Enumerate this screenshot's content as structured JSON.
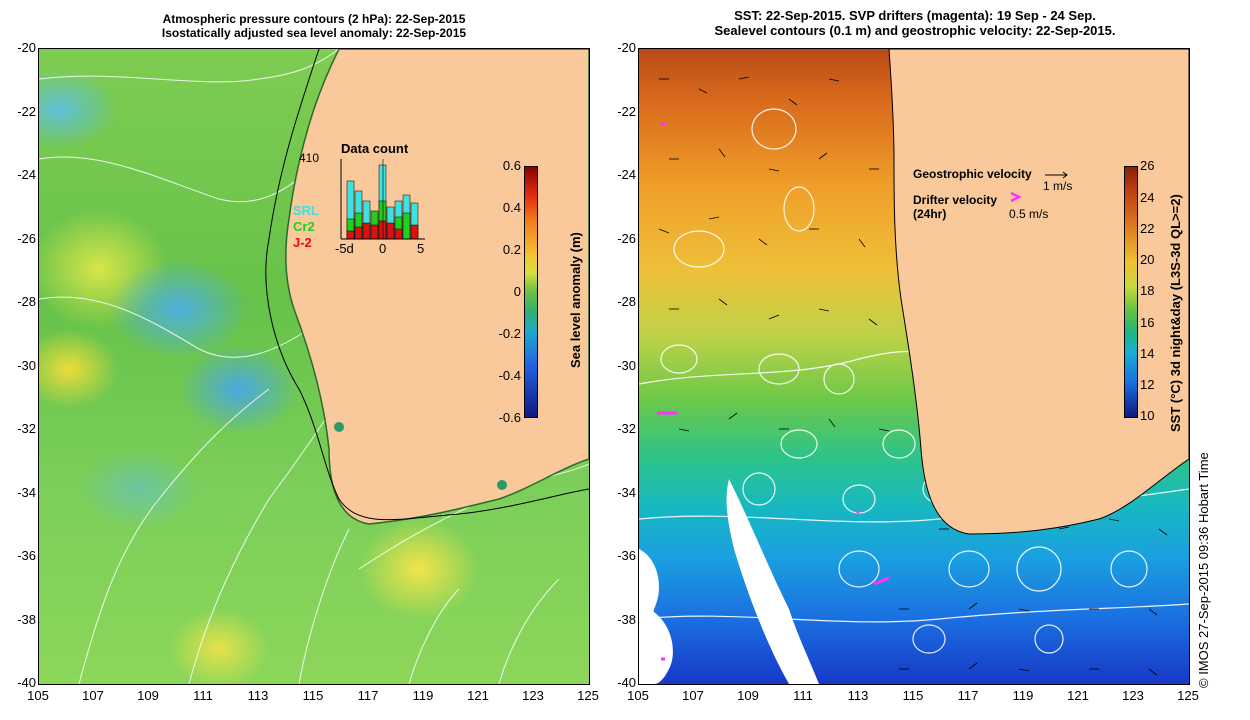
{
  "left": {
    "title_line1": "Atmospheric pressure contours (2 hPa): 22-Sep-2015",
    "title_line2": "Isostatically adjusted sea level anomaly: 22-Sep-2015",
    "colorbar": {
      "title": "Sea level anomaly (m)",
      "labels": [
        "0.6",
        "0.4",
        "0.2",
        "0",
        "-0.2",
        "-0.4",
        "-0.6"
      ]
    },
    "inset": {
      "title": "Data count",
      "ymax_label": "410",
      "x_labels": [
        "-5d",
        "0",
        "5"
      ],
      "series_labels": [
        {
          "name": "SRL",
          "color": "#40e0e0"
        },
        {
          "name": "Cr2",
          "color": "#20d020"
        },
        {
          "name": "J-2",
          "color": "#e01010"
        }
      ]
    }
  },
  "right": {
    "title_line1": "SST: 22-Sep-2015. SVP drifters (magenta): 19 Sep - 24 Sep.",
    "title_line2": "Sealevel contours (0.1 m) and geostrophic velocity: 22-Sep-2015.",
    "colorbar": {
      "title": "SST (°C) 3d night&day (L3S-3d QL>=2)",
      "labels": [
        "26",
        "24",
        "22",
        "20",
        "18",
        "16",
        "14",
        "12",
        "10"
      ]
    },
    "legend": {
      "geostrophic_label": "Geostrophic velocity",
      "geostrophic_scale": "1 m/s",
      "drifter_label_line1": "Drifter velocity",
      "drifter_label_line2": "(24hr)",
      "drifter_scale": "0.5 m/s"
    }
  },
  "axes": {
    "y_labels": [
      "-20",
      "-22",
      "-24",
      "-26",
      "-28",
      "-30",
      "-32",
      "-34",
      "-36",
      "-38",
      "-40"
    ],
    "x_labels": [
      "105",
      "107",
      "109",
      "111",
      "113",
      "115",
      "117",
      "119",
      "121",
      "123",
      "125"
    ]
  },
  "credit": "© IMOS 27-Sep-2015 09:36 Hobart Time",
  "colors": {
    "land": "#f9c89b",
    "drifter": "#ff30ff"
  }
}
